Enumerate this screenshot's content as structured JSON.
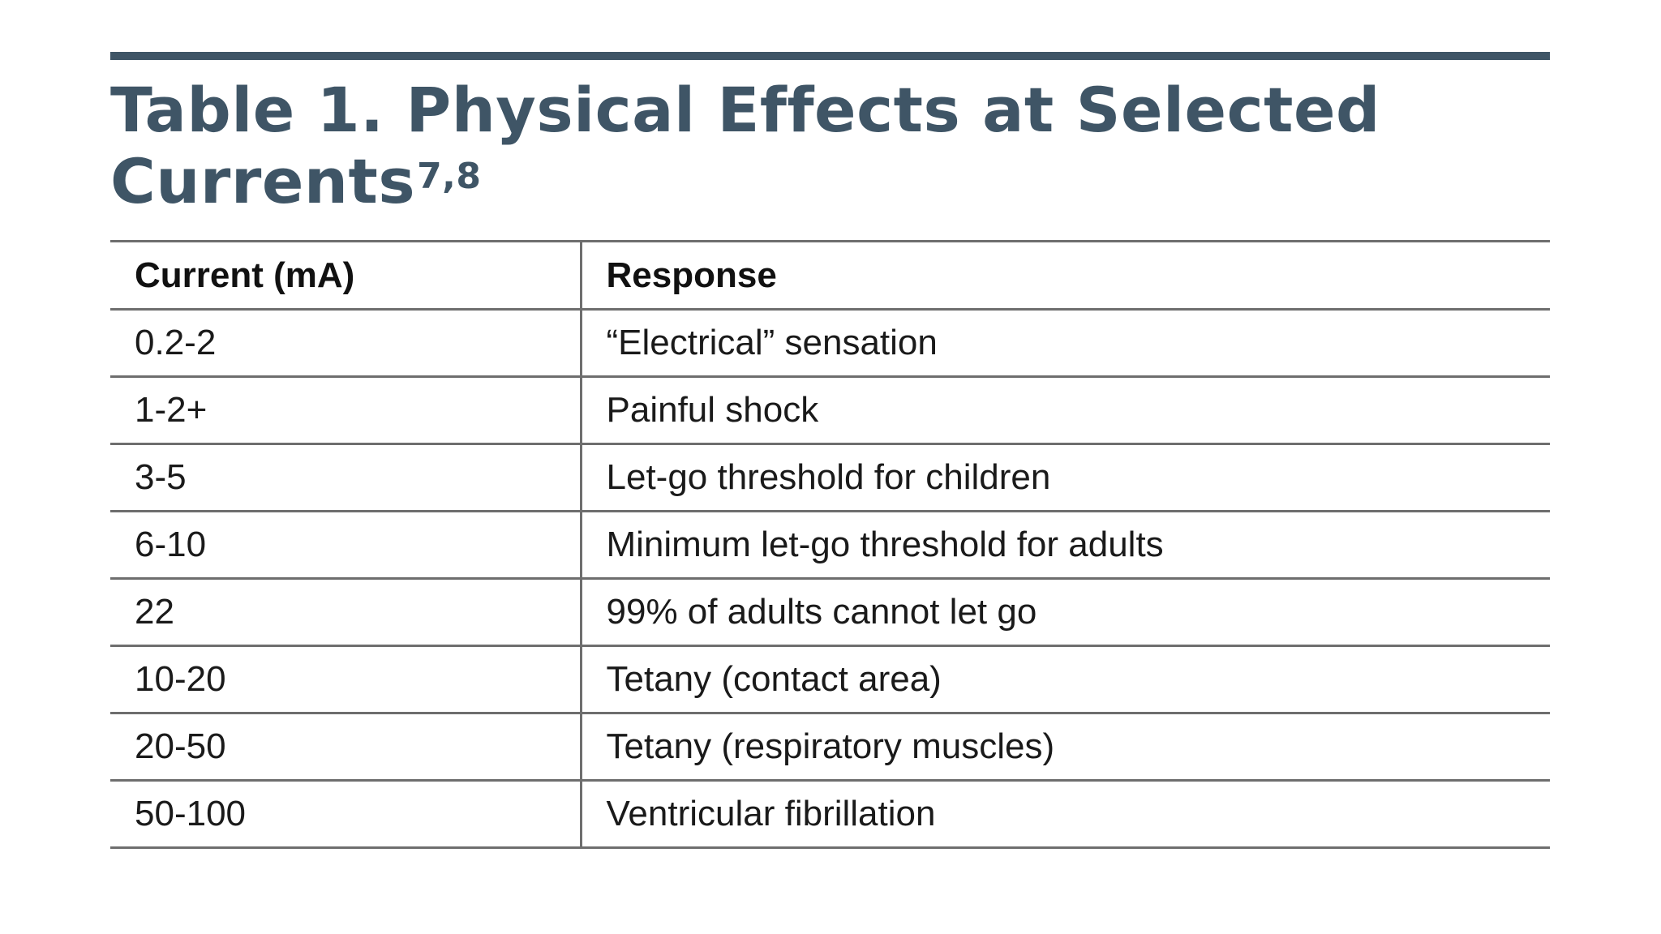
{
  "title": {
    "text": "Table 1. Physical Effects at Selected Currents",
    "superscript": "7,8"
  },
  "table": {
    "headers": [
      "Current (mA)",
      "Response"
    ],
    "rows": [
      [
        "0.2-2",
        "“Electrical” sensation"
      ],
      [
        "1-2+",
        "Painful shock"
      ],
      [
        "3-5",
        "Let-go threshold for children"
      ],
      [
        "6-10",
        "Minimum let-go threshold for adults"
      ],
      [
        "22",
        "99% of adults cannot let go"
      ],
      [
        "10-20",
        "Tetany (contact area)"
      ],
      [
        "20-50",
        "Tetany (respiratory muscles)"
      ],
      [
        "50-100",
        "Ventricular fibrillation"
      ]
    ]
  },
  "colors": {
    "title": "#3f5566",
    "rule": "#3f5566",
    "grid": "#6e6e6e",
    "text": "#1a1a1a"
  }
}
